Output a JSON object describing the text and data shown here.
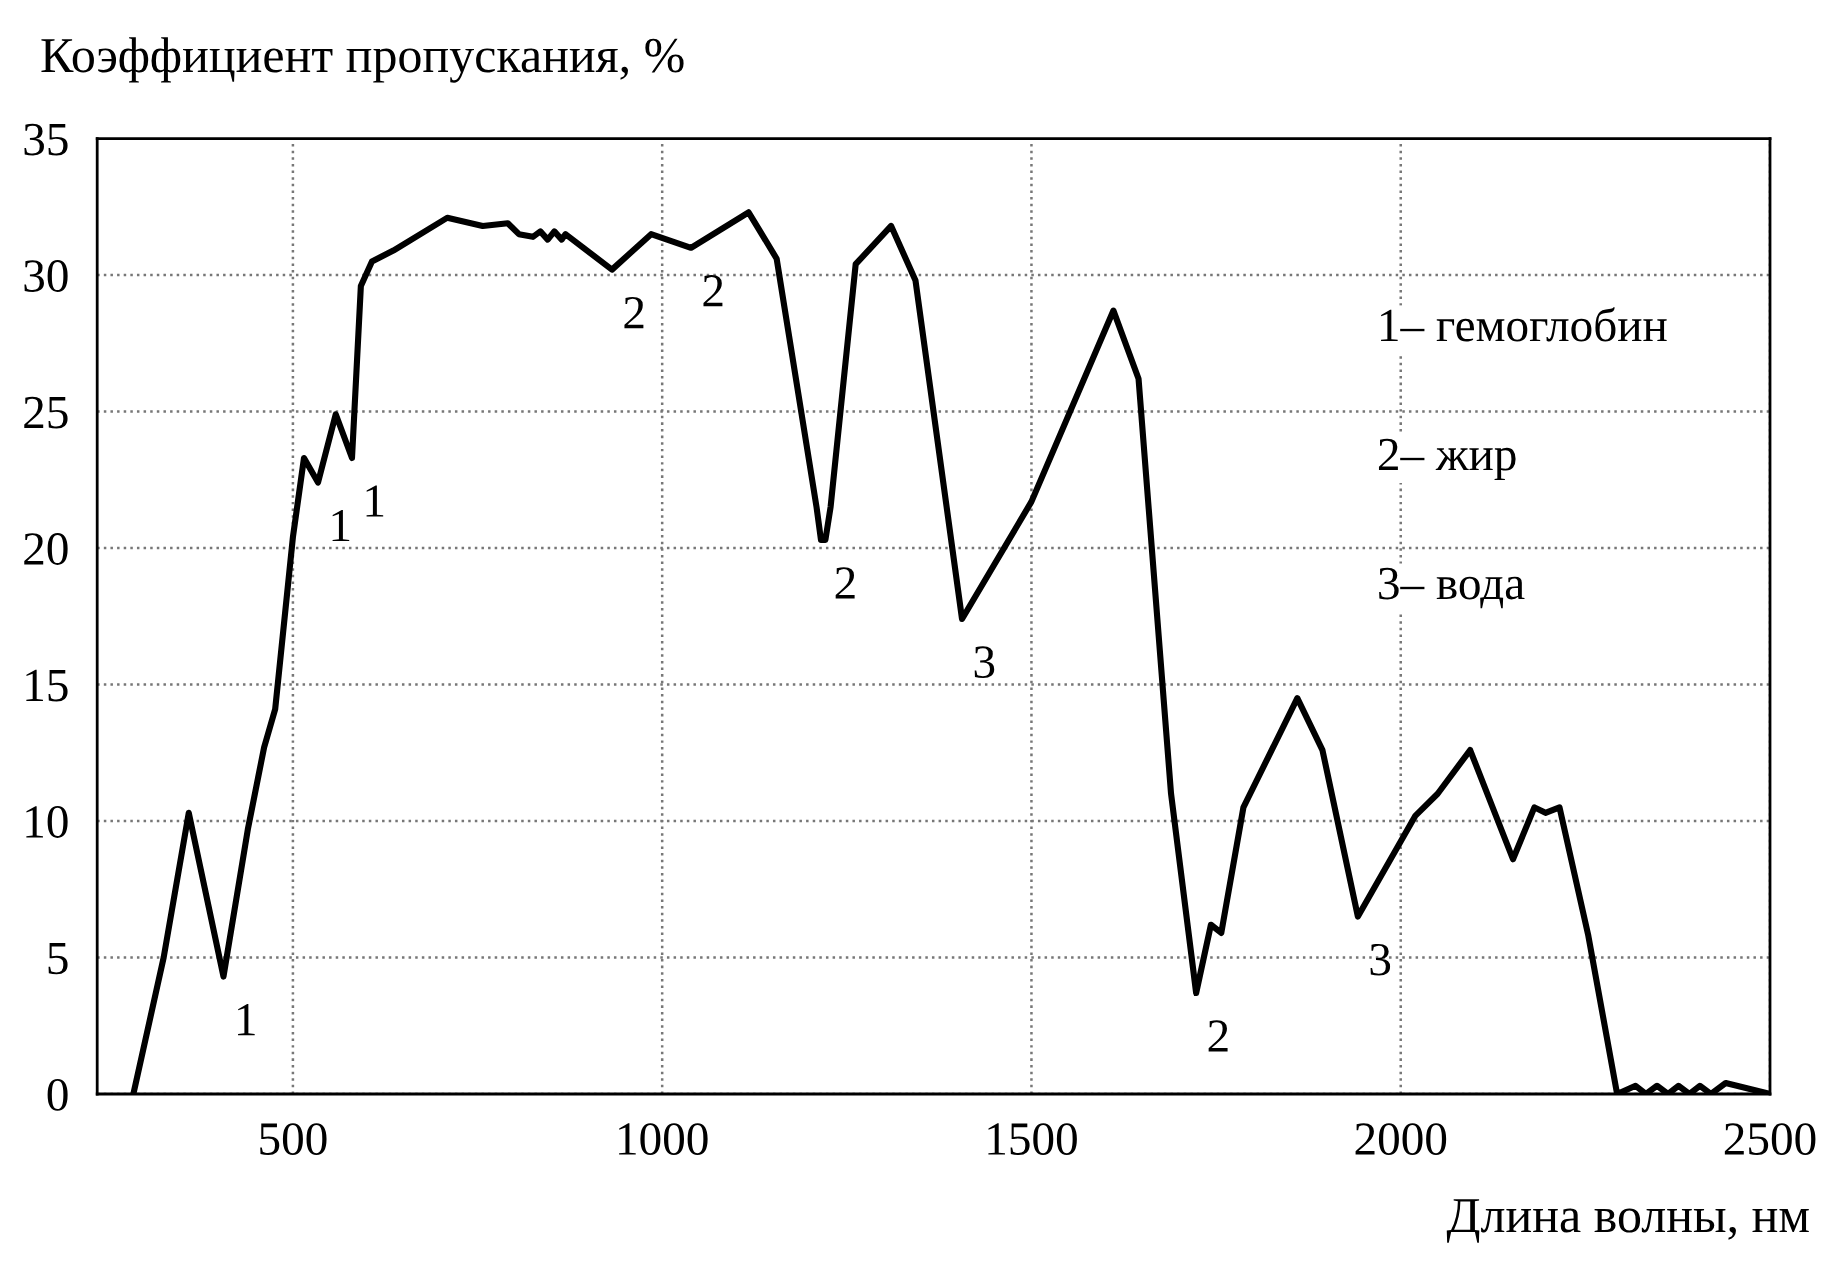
{
  "chart_data": {
    "type": "line",
    "ylabel": "Коэффициент пропускания, %",
    "xlabel": "Длина волны, нм",
    "series": [
      {
        "color": "#000000",
        "x": [
          284,
          325,
          359,
          406,
          439,
          461,
          476,
          500,
          515,
          534,
          558,
          580,
          592,
          607,
          636,
          709,
          757,
          791,
          806,
          825,
          835,
          845,
          854,
          864,
          869,
          932,
          985,
          1039,
          1117,
          1155,
          1209,
          1215,
          1221,
          1228,
          1262,
          1310,
          1343,
          1406,
          1500,
          1611,
          1645,
          1689,
          1723,
          1743,
          1757,
          1787,
          1860,
          1894,
          1942,
          2020,
          2050,
          2094,
          2152,
          2181,
          2196,
          2215,
          2254,
          2293,
          2318,
          2332,
          2347,
          2362,
          2376,
          2391,
          2405,
          2420,
          2440,
          2500
        ],
        "values": [
          0,
          5.0,
          10.3,
          4.3,
          9.7,
          12.7,
          14.1,
          20.4,
          23.3,
          22.4,
          24.9,
          23.3,
          29.6,
          30.5,
          30.9,
          32.1,
          31.8,
          31.9,
          31.5,
          31.4,
          31.6,
          31.3,
          31.6,
          31.3,
          31.5,
          30.2,
          31.5,
          31.0,
          32.3,
          30.6,
          21.5,
          20.3,
          20.3,
          21.5,
          30.4,
          31.8,
          29.8,
          17.4,
          21.7,
          28.7,
          26.2,
          11.0,
          3.7,
          6.2,
          5.9,
          10.5,
          14.5,
          12.6,
          6.5,
          10.2,
          11.0,
          12.6,
          8.6,
          10.5,
          10.3,
          10.5,
          5.8,
          0,
          0.3,
          0,
          0.3,
          0,
          0.3,
          0,
          0.3,
          0,
          0.4,
          0
        ]
      }
    ],
    "xlim": [
      235,
      2500
    ],
    "xticks": [
      500,
      1000,
      1500,
      2000,
      2500
    ],
    "ylim": [
      0,
      35
    ],
    "yticks": [
      0,
      5,
      10,
      15,
      20,
      25,
      30,
      35
    ],
    "grid": true,
    "marker": "none",
    "line_style": "solid",
    "annotations": [
      {
        "text": "1",
        "x": 406,
        "y": 4.3
      },
      {
        "text": "1",
        "x": 534,
        "y": 22.4
      },
      {
        "text": "1",
        "x": 580,
        "y": 23.3
      },
      {
        "text": "2",
        "x": 932,
        "y": 30.2
      },
      {
        "text": "2",
        "x": 1039,
        "y": 31.0
      },
      {
        "text": "2",
        "x": 1218,
        "y": 20.3
      },
      {
        "text": "3",
        "x": 1406,
        "y": 17.4
      },
      {
        "text": "2",
        "x": 1723,
        "y": 3.7
      },
      {
        "text": "3",
        "x": 1942,
        "y": 6.5
      },
      "1– гемоглобин",
      "2– жир",
      "3– вода"
    ]
  }
}
